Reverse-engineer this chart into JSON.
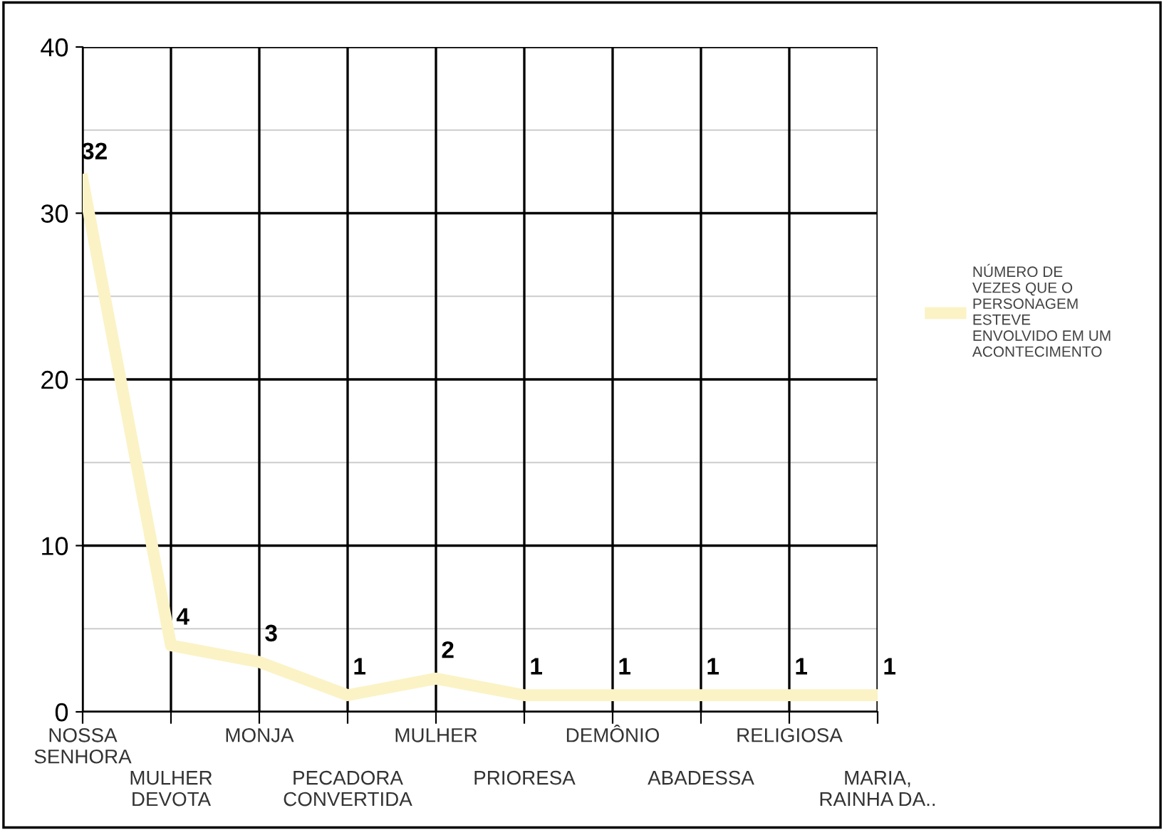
{
  "chart_data": {
    "type": "line",
    "categories": [
      "NOSSA\nSENHORA",
      "MULHER\nDEVOTA",
      "MONJA",
      "PECADORA\nCONVERTIDA",
      "MULHER",
      "PRIORESA",
      "DEMÔNIO",
      "ABADESSA",
      "RELIGIOSA",
      "MARIA,\nRAINHA DA.."
    ],
    "series": [
      {
        "name": "NÚMERO DE\nVEZES QUE O\nPERSONAGEM\nESTEVE\nENVOLVIDO EM UM\nACONTECIMENTO",
        "color": "#fbf3c6",
        "values": [
          32,
          4,
          3,
          1,
          2,
          1,
          1,
          1,
          1,
          1
        ]
      }
    ],
    "ylim": [
      0,
      40
    ],
    "yticks": [
      0,
      10,
      20,
      30,
      40
    ],
    "grid": true,
    "legend": "right",
    "data_labels": true,
    "marker": "none",
    "line_style": "solid"
  }
}
